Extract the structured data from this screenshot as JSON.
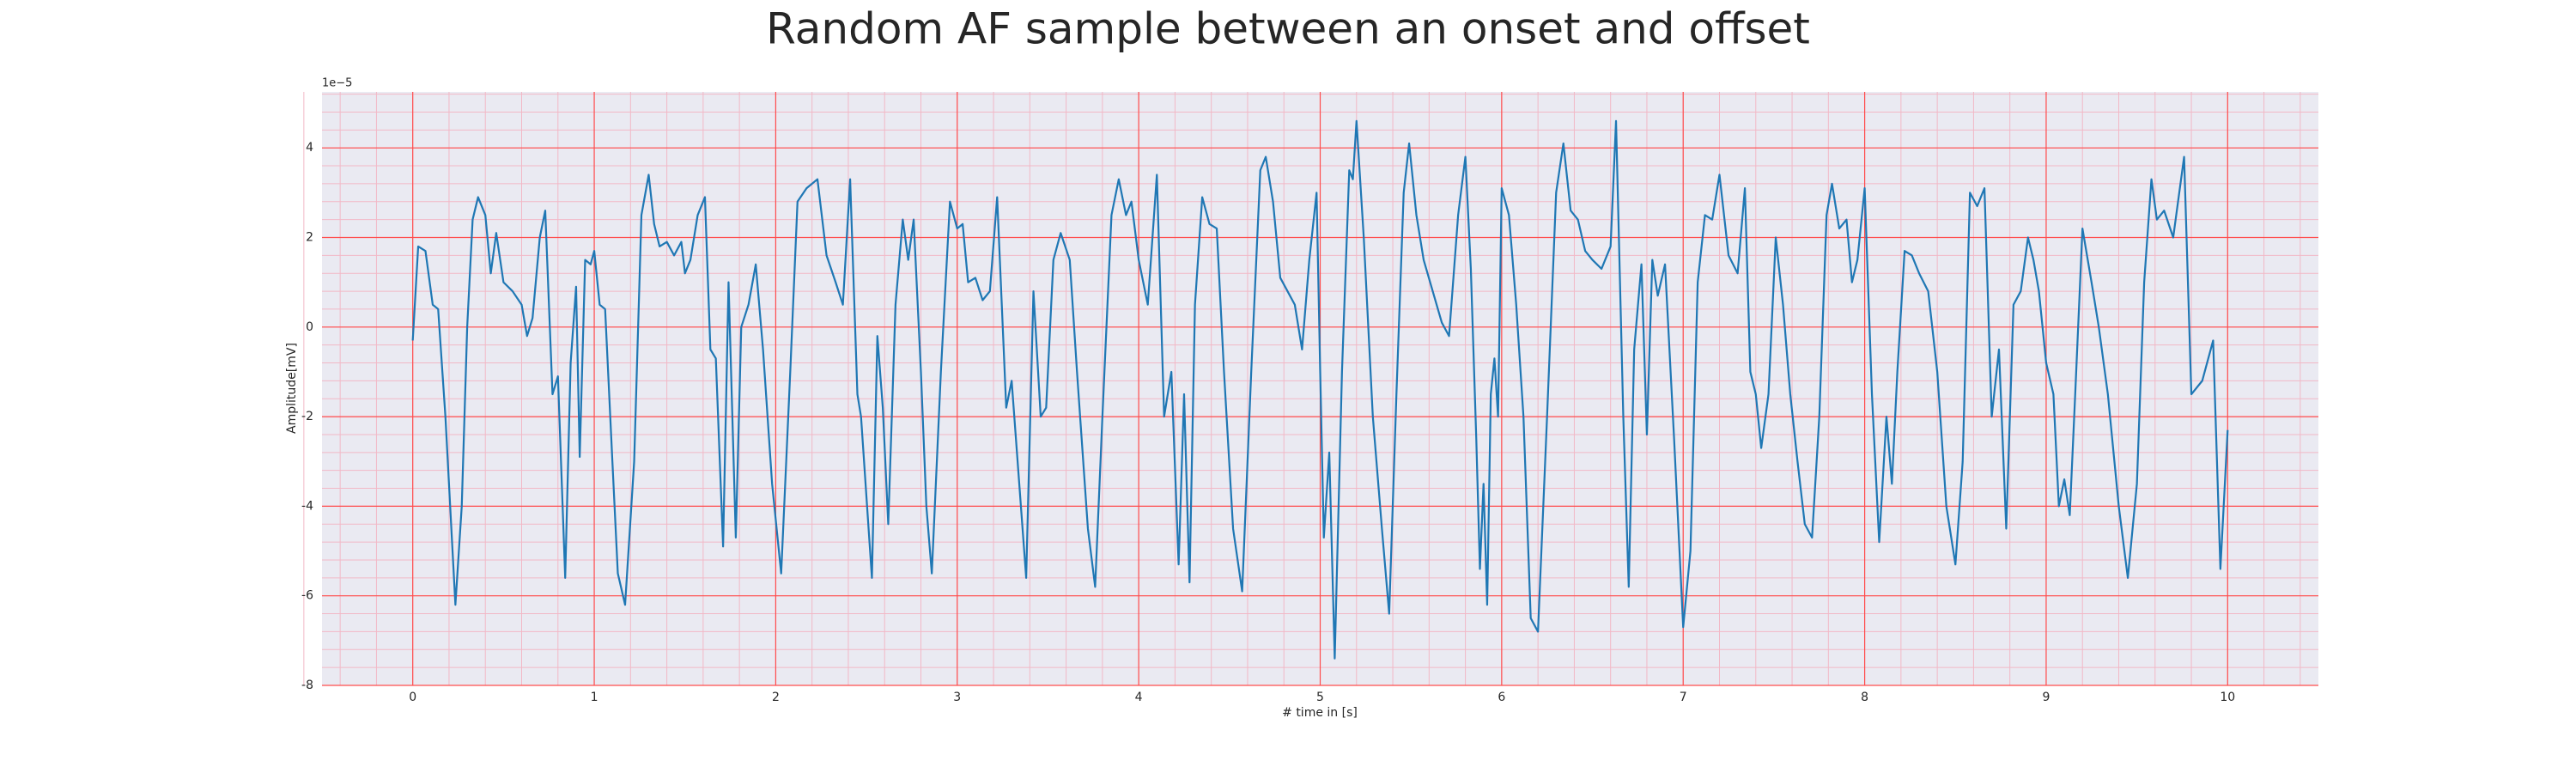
{
  "chart_data": {
    "type": "line",
    "title": "Random AF sample between an onset and offset",
    "xlabel": "# time in [s]",
    "ylabel": "Amplitude[mV]",
    "offset_text": "1e−5",
    "xlim": [
      -0.5,
      10.5
    ],
    "xticks": [
      0,
      1,
      2,
      3,
      4,
      5,
      6,
      7,
      8,
      9,
      10
    ],
    "ylim": [
      -8,
      5.25
    ],
    "yticks": [
      -8,
      -6,
      -4,
      -2,
      0,
      2,
      4
    ],
    "grid": true,
    "minor_grid": true,
    "grid_color": "#ff4d4d",
    "minor_grid_color": "#f2b8c6",
    "background": "#eaeaf2",
    "series": [
      {
        "color": "#1f77b4",
        "x": [
          0,
          0.03,
          0.07,
          0.11,
          0.14,
          0.18,
          0.235,
          0.27,
          0.3,
          0.33,
          0.36,
          0.4,
          0.43,
          0.46,
          0.5,
          0.55,
          0.6,
          0.63,
          0.66,
          0.7,
          0.73,
          0.77,
          0.8,
          0.84,
          0.87,
          0.9,
          0.92,
          0.95,
          0.98,
          1.0,
          1.03,
          1.06,
          1.1,
          1.13,
          1.17,
          1.22,
          1.26,
          1.3,
          1.33,
          1.36,
          1.4,
          1.44,
          1.48,
          1.5,
          1.53,
          1.57,
          1.61,
          1.64,
          1.67,
          1.71,
          1.74,
          1.78,
          1.81,
          1.85,
          1.89,
          1.93,
          1.98,
          2.03,
          2.08,
          2.12,
          2.17,
          2.23,
          2.28,
          2.33,
          2.37,
          2.41,
          2.45,
          2.47,
          2.53,
          2.56,
          2.59,
          2.62,
          2.66,
          2.7,
          2.73,
          2.76,
          2.8,
          2.83,
          2.86,
          2.91,
          2.96,
          3.0,
          3.03,
          3.06,
          3.1,
          3.14,
          3.18,
          3.22,
          3.27,
          3.3,
          3.38,
          3.42,
          3.46,
          3.49,
          3.53,
          3.57,
          3.62,
          3.66,
          3.72,
          3.76,
          3.8,
          3.85,
          3.89,
          3.93,
          3.96,
          4.0,
          4.05,
          4.1,
          4.14,
          4.18,
          4.22,
          4.25,
          4.28,
          4.31,
          4.35,
          4.39,
          4.43,
          4.47,
          4.52,
          4.57,
          4.62,
          4.67,
          4.7,
          4.74,
          4.78,
          4.82,
          4.86,
          4.9,
          4.94,
          4.98,
          5.0,
          5.02,
          5.05,
          5.08,
          5.12,
          5.16,
          5.18,
          5.2,
          5.24,
          5.29,
          5.34,
          5.38,
          5.42,
          5.46,
          5.49,
          5.53,
          5.57,
          5.62,
          5.67,
          5.71,
          5.76,
          5.8,
          5.83,
          5.86,
          5.88,
          5.9,
          5.92,
          5.94,
          5.96,
          5.98,
          6.0,
          6.04,
          6.08,
          6.12,
          6.16,
          6.2,
          6.25,
          6.3,
          6.34,
          6.38,
          6.42,
          6.46,
          6.5,
          6.55,
          6.6,
          6.63,
          6.67,
          6.7,
          6.73,
          6.77,
          6.8,
          6.83,
          6.86,
          6.9,
          6.95,
          7.0,
          7.04,
          7.08,
          7.12,
          7.16,
          7.2,
          7.25,
          7.3,
          7.34,
          7.37,
          7.4,
          7.43,
          7.47,
          7.51,
          7.55,
          7.59,
          7.63,
          7.67,
          7.71,
          7.75,
          7.79,
          7.82,
          7.86,
          7.9,
          7.93,
          7.96,
          8.0,
          8.04,
          8.08,
          8.12,
          8.15,
          8.18,
          8.22,
          8.26,
          8.3,
          8.35,
          8.4,
          8.45,
          8.5,
          8.54,
          8.58,
          8.62,
          8.66,
          8.7,
          8.74,
          8.78,
          8.82,
          8.86,
          8.9,
          8.93,
          8.96,
          9.0,
          9.04,
          9.07,
          9.1,
          9.13,
          9.16,
          9.2,
          9.25,
          9.29,
          9.34,
          9.4,
          9.45,
          9.5,
          9.54,
          9.58,
          9.61,
          9.65,
          9.7,
          9.74,
          9.76,
          9.8,
          9.86,
          9.92,
          9.96,
          10.0
        ],
        "values": [
          -0.3,
          1.8,
          1.7,
          0.5,
          0.4,
          -2,
          -6.2,
          -4,
          0,
          2.4,
          2.9,
          2.5,
          1.2,
          2.1,
          1,
          0.8,
          0.5,
          -0.2,
          0.2,
          2,
          2.6,
          -1.5,
          -1.1,
          -5.6,
          -0.8,
          0.9,
          -2.9,
          1.5,
          1.4,
          1.7,
          0.5,
          0.4,
          -3,
          -5.5,
          -6.2,
          -3,
          2.5,
          3.4,
          2.3,
          1.8,
          1.9,
          1.6,
          1.9,
          1.2,
          1.5,
          2.5,
          2.9,
          -0.5,
          -0.7,
          -4.9,
          1.0,
          -4.7,
          0,
          0.5,
          1.4,
          -0.5,
          -3.5,
          -5.5,
          -1,
          2.8,
          3.1,
          3.3,
          1.6,
          1.0,
          0.5,
          3.3,
          -1.5,
          -2,
          -5.6,
          -0.2,
          -1.8,
          -4.4,
          0.5,
          2.4,
          1.5,
          2.4,
          -1,
          -4,
          -5.5,
          -1,
          2.8,
          2.2,
          2.3,
          1,
          1.1,
          0.6,
          0.8,
          2.9,
          -1.8,
          -1.2,
          -5.6,
          0.8,
          -2,
          -1.8,
          1.5,
          2.1,
          1.5,
          -1,
          -4.5,
          -5.8,
          -2,
          2.5,
          3.3,
          2.5,
          2.8,
          1.5,
          0.5,
          3.4,
          -2,
          -1,
          -5.3,
          -1.5,
          -5.7,
          0.5,
          2.9,
          2.3,
          2.2,
          -1,
          -4.5,
          -5.9,
          -1,
          3.5,
          3.8,
          2.8,
          1.1,
          0.8,
          0.5,
          -0.5,
          1.5,
          3.0,
          -1,
          -4.7,
          -2.8,
          -7.4,
          -1,
          3.5,
          3.3,
          4.6,
          2,
          -2,
          -4.5,
          -6.4,
          -1.5,
          3,
          4.1,
          2.5,
          1.5,
          0.8,
          0.1,
          -0.2,
          2.5,
          3.8,
          1.3,
          -2.5,
          -5.4,
          -3.5,
          -6.2,
          -1.5,
          -0.7,
          -2,
          3.1,
          2.5,
          0.5,
          -2,
          -6.5,
          -6.8,
          -2,
          3,
          4.1,
          2.6,
          2.4,
          1.7,
          1.5,
          1.3,
          1.8,
          4.6,
          -2,
          -5.8,
          -0.5,
          1.4,
          -2.4,
          1.5,
          0.7,
          1.4,
          -2.5,
          -6.7,
          -5,
          1,
          2.5,
          2.4,
          3.4,
          1.6,
          1.2,
          3.1,
          -1,
          -1.5,
          -2.7,
          -1.5,
          2,
          0.5,
          -1.5,
          -3,
          -4.4,
          -4.7,
          -2,
          2.5,
          3.2,
          2.2,
          2.4,
          1,
          1.5,
          3.1,
          -1.5,
          -4.8,
          -2,
          -3.5,
          -1,
          1.7,
          1.6,
          1.2,
          0.8,
          -1,
          -4,
          -5.3,
          -3,
          3,
          2.7,
          3.1,
          -2,
          -0.5,
          -4.5,
          0.5,
          0.8,
          2.0,
          1.5,
          0.8,
          -0.8,
          -1.5,
          -4,
          -3.4,
          -4.2,
          -1.5,
          2.2,
          1,
          0,
          -1.5,
          -4,
          -5.6,
          -3.5,
          1,
          3.3,
          2.4,
          2.6,
          2,
          3.2,
          3.8,
          -1.5,
          -1.2,
          -0.3,
          -5.4,
          -2.3
        ]
      }
    ]
  }
}
